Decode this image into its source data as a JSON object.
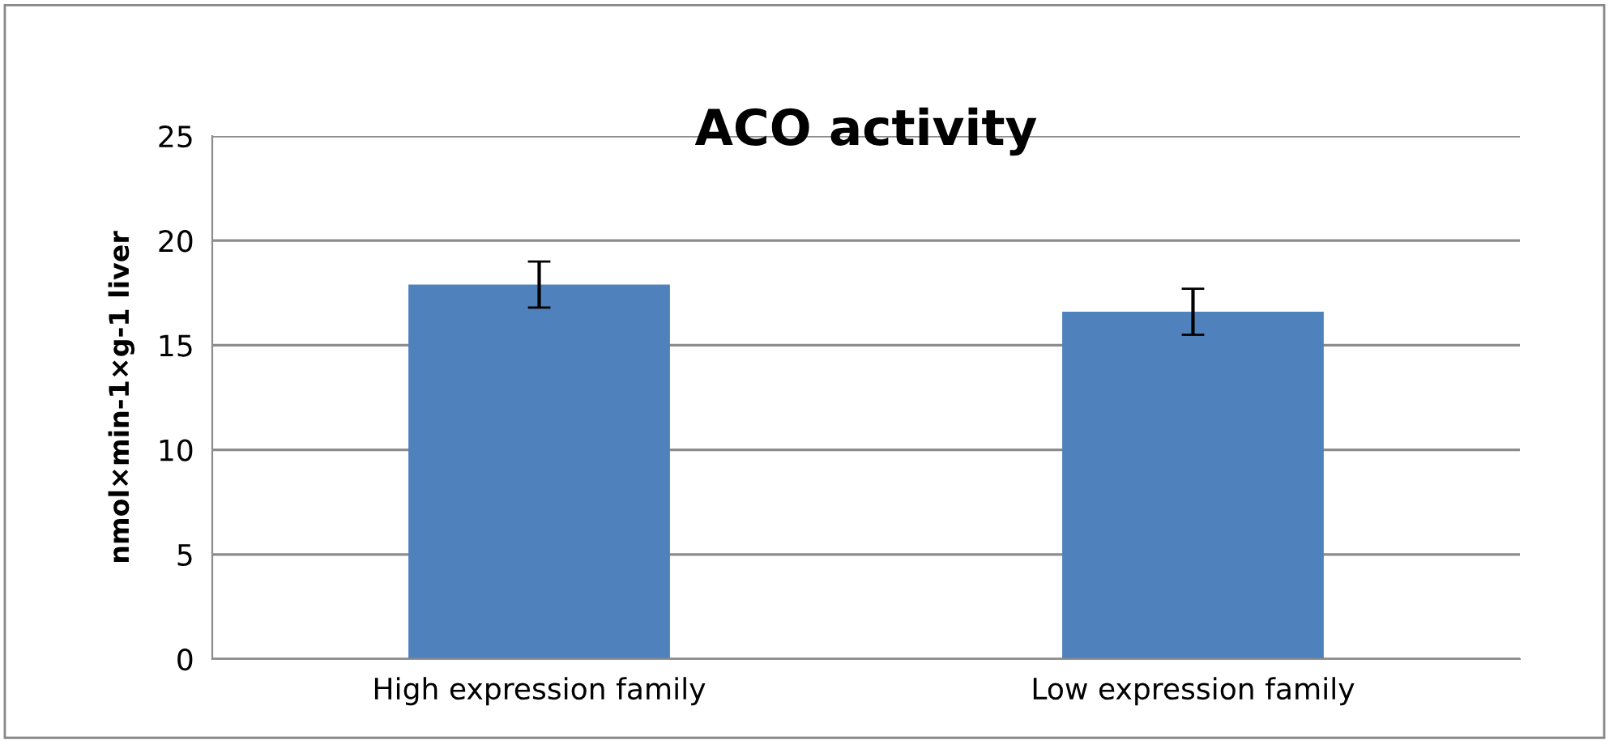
{
  "chart_data": {
    "type": "bar",
    "title": "ACO activity",
    "ylabel": "nmol×min-1×g-1 liver",
    "categories": [
      "High expression family",
      "Low expression family"
    ],
    "values": [
      17.9,
      16.6
    ],
    "errors": [
      1.1,
      1.1
    ],
    "color": "#4f81bd",
    "ylim": [
      0,
      25
    ],
    "yticks": [
      0,
      5,
      10,
      15,
      20,
      25
    ],
    "grid": "y",
    "legend": false
  }
}
